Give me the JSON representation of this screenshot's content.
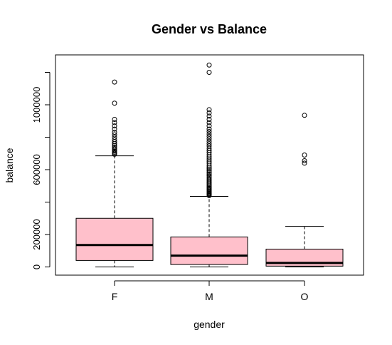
{
  "chart_data": {
    "type": "boxplot",
    "title": "Gender vs Balance",
    "xlabel": "gender",
    "ylabel": "balance",
    "ylim": [
      -50000,
      1250000
    ],
    "yticks": [
      {
        "value": 0,
        "label": "0"
      },
      {
        "value": 200000,
        "label": "200000"
      },
      {
        "value": 600000,
        "label": "600000"
      },
      {
        "value": 1000000,
        "label": "1000000"
      }
    ],
    "ytick_minor": [
      400000,
      800000,
      1200000
    ],
    "box_color": "#ffc0cb",
    "categories": [
      "F",
      "M",
      "O"
    ],
    "boxes": [
      {
        "category": "F",
        "whisker_low": 0,
        "q1": 40000,
        "median": 135000,
        "q3": 300000,
        "whisker_high": 685000,
        "outliers": [
          695000,
          702000,
          708000,
          715000,
          722000,
          730000,
          738000,
          748000,
          760000,
          772000,
          785000,
          800000,
          815000,
          830000,
          850000,
          870000,
          890000,
          910000,
          1010000,
          1140000
        ]
      },
      {
        "category": "M",
        "whisker_low": 0,
        "q1": 15000,
        "median": 70000,
        "q3": 185000,
        "whisker_high": 435000,
        "outliers": [
          440000,
          445000,
          450000,
          455000,
          460000,
          466000,
          472000,
          478000,
          485000,
          492000,
          500000,
          508000,
          516000,
          525000,
          534000,
          543000,
          552000,
          562000,
          572000,
          582000,
          593000,
          604000,
          615000,
          627000,
          640000,
          652000,
          665000,
          678000,
          691000,
          705000,
          718000,
          732000,
          746000,
          760000,
          775000,
          790000,
          805000,
          820000,
          835000,
          850000,
          870000,
          890000,
          910000,
          930000,
          950000,
          970000,
          1200000,
          1245000
        ]
      },
      {
        "category": "O",
        "whisker_low": 0,
        "q1": 5000,
        "median": 25000,
        "q3": 110000,
        "whisker_high": 250000,
        "outliers": [
          640000,
          655000,
          690000,
          935000
        ]
      }
    ]
  }
}
